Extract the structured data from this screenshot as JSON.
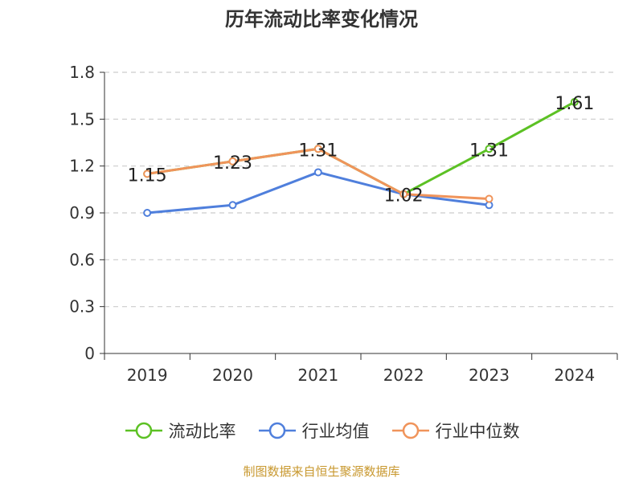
{
  "title": "历年流动比率变化情况",
  "source_note": "制图数据来自恒生聚源数据库",
  "chart_data": {
    "type": "line",
    "categories": [
      "2019",
      "2020",
      "2021",
      "2022",
      "2023",
      "2024"
    ],
    "ylim": [
      0,
      1.8
    ],
    "yticks": [
      "0",
      "0.3",
      "0.6",
      "0.9",
      "1.2",
      "1.5",
      "1.8"
    ],
    "grid": true,
    "legend_position": "bottom",
    "series": [
      {
        "name": "流动比率",
        "color": "#5cc124",
        "values": [
          1.15,
          1.23,
          1.31,
          1.02,
          1.31,
          1.61
        ],
        "labels": [
          "1.15",
          "1.23",
          "1.31",
          "1.02",
          "1.31",
          "1.61"
        ]
      },
      {
        "name": "行业均值",
        "color": "#4f7fdc",
        "values": [
          0.9,
          0.95,
          1.16,
          1.02,
          0.95,
          null
        ]
      },
      {
        "name": "行业中位数",
        "color": "#f0945b",
        "values": [
          1.15,
          1.23,
          1.31,
          1.02,
          0.99,
          null
        ]
      }
    ]
  }
}
